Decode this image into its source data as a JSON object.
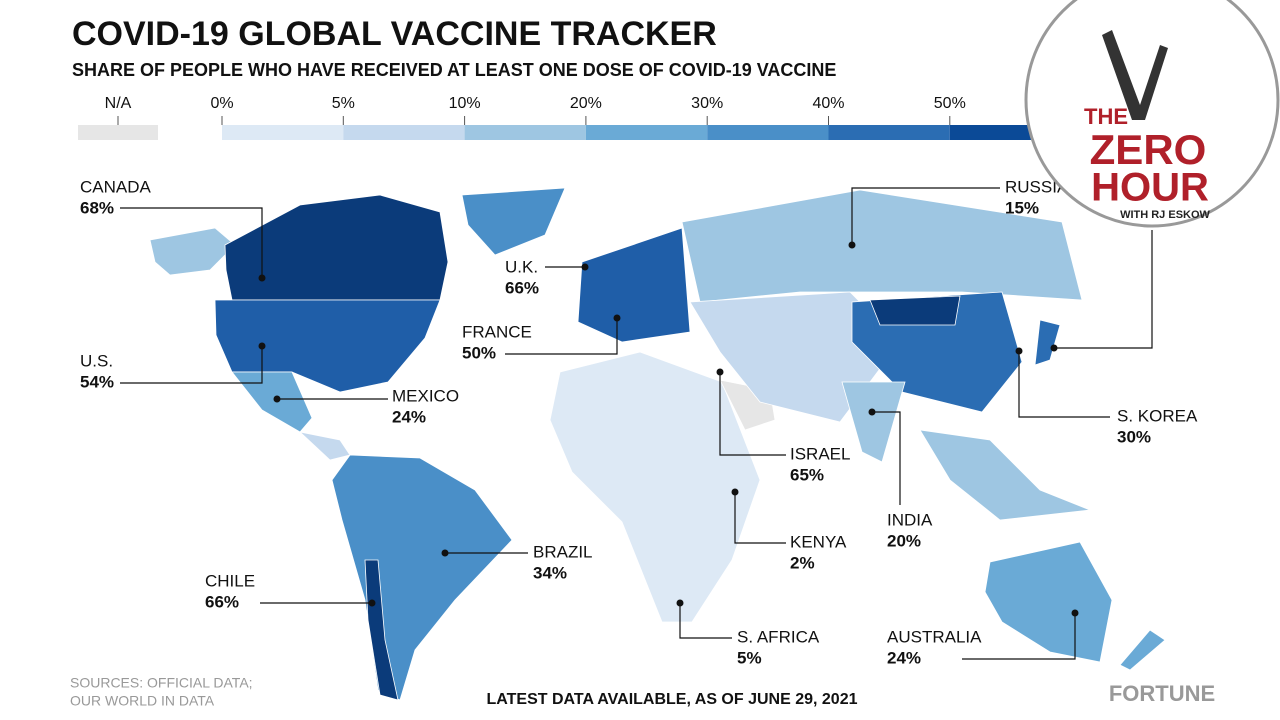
{
  "header": {
    "title": "COVID-19 GLOBAL VACCINE TRACKER",
    "subtitle": "SHARE OF PEOPLE WHO HAVE RECEIVED AT LEAST ONE DOSE OF COVID-19 VACCINE"
  },
  "legend": {
    "items": [
      {
        "label": "N/A",
        "color": "#e6e6e6"
      },
      {
        "label": "0%",
        "color": "#dde9f5"
      },
      {
        "label": "5%",
        "color": "#c5d9ee"
      },
      {
        "label": "10%",
        "color": "#9ec6e2"
      },
      {
        "label": "20%",
        "color": "#6aaad6"
      },
      {
        "label": "30%",
        "color": "#4a8fc8"
      },
      {
        "label": "40%",
        "color": "#2b6db3"
      },
      {
        "label": "50%",
        "color": "#0b4a97"
      }
    ]
  },
  "callouts": [
    {
      "name": "CANADA",
      "value": "68%"
    },
    {
      "name": "U.K.",
      "value": "66%"
    },
    {
      "name": "FRANCE",
      "value": "50%"
    },
    {
      "name": "U.S.",
      "value": "54%"
    },
    {
      "name": "MEXICO",
      "value": "24%"
    },
    {
      "name": "RUSSIA",
      "value": "15%"
    },
    {
      "name": "S. KOREA",
      "value": "30%"
    },
    {
      "name": "ISRAEL",
      "value": "65%"
    },
    {
      "name": "INDIA",
      "value": "20%"
    },
    {
      "name": "KENYA",
      "value": "2%"
    },
    {
      "name": "BRAZIL",
      "value": "34%"
    },
    {
      "name": "CHILE",
      "value": "66%"
    },
    {
      "name": "S. AFRICA",
      "value": "5%"
    },
    {
      "name": "AUSTRALIA",
      "value": "24%"
    }
  ],
  "footer": {
    "sources": [
      "SOURCES: OFFICIAL DATA;",
      "OUR WORLD IN DATA"
    ],
    "date_note": "LATEST DATA AVAILABLE, AS OF JUNE 29, 2021",
    "brand": "FORTUNE"
  },
  "logo": {
    "lines": [
      "THE",
      "ZERO",
      "HOUR"
    ],
    "byline": "WITH RJ ESKOW"
  }
}
